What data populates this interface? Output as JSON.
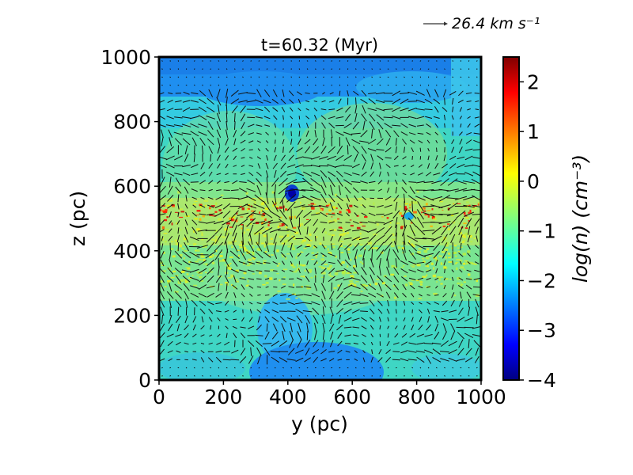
{
  "chart_data": {
    "type": "heatmap",
    "title": "t=60.32 (Myr)",
    "xlabel": "y (pc)",
    "ylabel": "z (pc)",
    "xlim": [
      0,
      1000
    ],
    "ylim": [
      0,
      1000
    ],
    "x_ticks": [
      "0",
      "200",
      "400",
      "600",
      "800",
      "1000"
    ],
    "y_ticks": [
      "0",
      "200",
      "400",
      "600",
      "800",
      "1000"
    ],
    "colorbar": {
      "label": "log(n) (cm⁻³)",
      "range": [
        -4,
        2.5
      ],
      "ticks": [
        "−4",
        "−3",
        "−2",
        "−1",
        "0",
        "1",
        "2"
      ],
      "colormap": "jet"
    },
    "quiver_key": {
      "label": "26.4 km s⁻¹",
      "value": 26.4
    },
    "density_regions": [
      {
        "feature": "dense filament layer",
        "z_range": [
          380,
          600
        ],
        "log_n": [
          0,
          1.5
        ]
      },
      {
        "feature": "low-density bubble",
        "center": [
          415,
          570
        ],
        "log_n": -3.2
      },
      {
        "feature": "low-density region",
        "center": [
          775,
          510
        ],
        "log_n": -2.2
      },
      {
        "feature": "background",
        "log_n": [
          -2,
          -1
        ]
      },
      {
        "feature": "hot cavity top",
        "z_range": [
          880,
          1000
        ],
        "log_n": -2.6
      },
      {
        "feature": "hot cavity bottom",
        "z_range": [
          0,
          110
        ],
        "log_n": -2.6
      }
    ]
  }
}
